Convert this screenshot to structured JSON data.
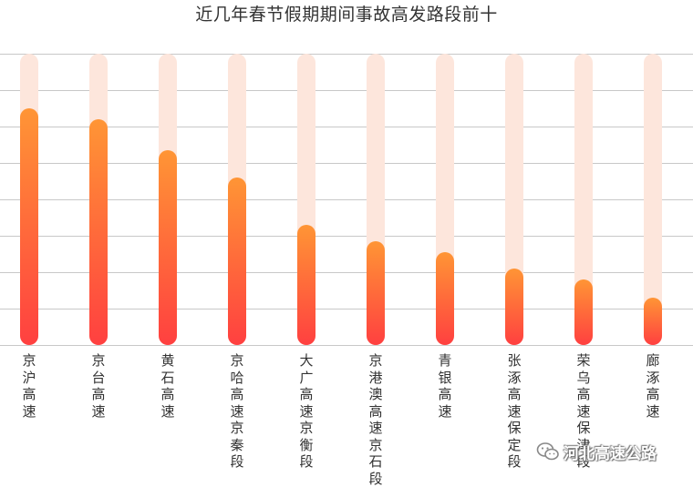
{
  "chart_data": {
    "type": "bar",
    "title": "近几年春节假期期间事故高发路段前十",
    "categories": [
      "京沪高速",
      "京台高速",
      "黄石高速",
      "京哈高速京秦段",
      "大广高速京衡段",
      "京港澳高速京石段",
      "青银高速",
      "张涿高速保定段",
      "荣乌高速保津段",
      "廊涿高速"
    ],
    "values": [
      65,
      62,
      53.5,
      46,
      33,
      28.5,
      25.5,
      21,
      18,
      13
    ],
    "ylim": [
      0,
      80
    ],
    "grid": true,
    "colors": {
      "bar_top": "#ff9535",
      "bar_bottom": "#ff4040",
      "track": "#fde6dc",
      "grid": "#c8c8c8"
    }
  },
  "watermark": {
    "text": "河北高速公路",
    "icon": "wechat-icon"
  }
}
